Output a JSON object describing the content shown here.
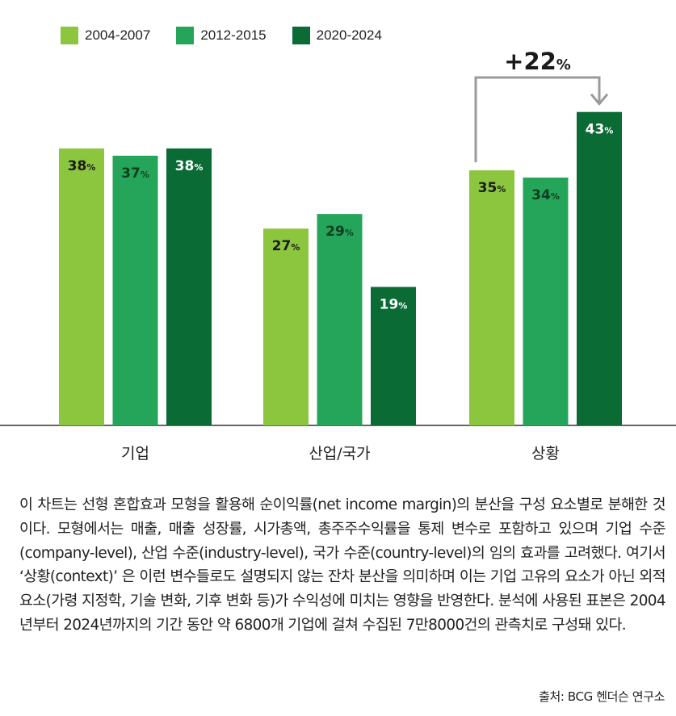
{
  "chart_data": {
    "type": "bar",
    "categories": [
      "기업",
      "산업/국가",
      "상황"
    ],
    "series": [
      {
        "name": "2004-2007",
        "values": [
          38,
          27,
          35
        ],
        "color": "#8cc63f"
      },
      {
        "name": "2012-2015",
        "values": [
          37,
          29,
          34
        ],
        "color": "#25a55a"
      },
      {
        "name": "2020-2024",
        "values": [
          38,
          19,
          43
        ],
        "color": "#0a6b34"
      }
    ],
    "value_suffix": "%",
    "ylim": [
      0,
      50
    ],
    "grid": false,
    "legend_position": "top-left",
    "annotation": {
      "text": "+22",
      "suffix": "%",
      "from_series": 0,
      "to_series": 2,
      "category": 2
    }
  },
  "note": "이 차트는 선형 혼합효과 모형을 활용해 순이익률(net income margin)의 분산을 구성 요소별로 분해한 것이다. 모형에서는 매출, 매출 성장률, 시가총액, 총주주수익률을 통제 변수로 포함하고 있으며 기업 수준(company-level), 산업 수준(industry-level), 국가 수준(country-level)의 임의 효과를 고려했다. 여기서 ‘상황(context)’ 은 이런 변수들로도 설명되지 않는 잔차 분산을 의미하며 이는 기업 고유의 요소가 아닌 외적 요소(가령 지정학, 기술 변화, 기후 변화 등)가 수익성에 미치는 영향을 반영한다. 분석에 사용된 표본은 2004년부터 2024년까지의 기간 동안 약 6800개 기업에 걸쳐 수집된 7만8000건의 관측치로 구성돼 있다.",
  "source": "출처: BCG 헨더슨 연구소"
}
